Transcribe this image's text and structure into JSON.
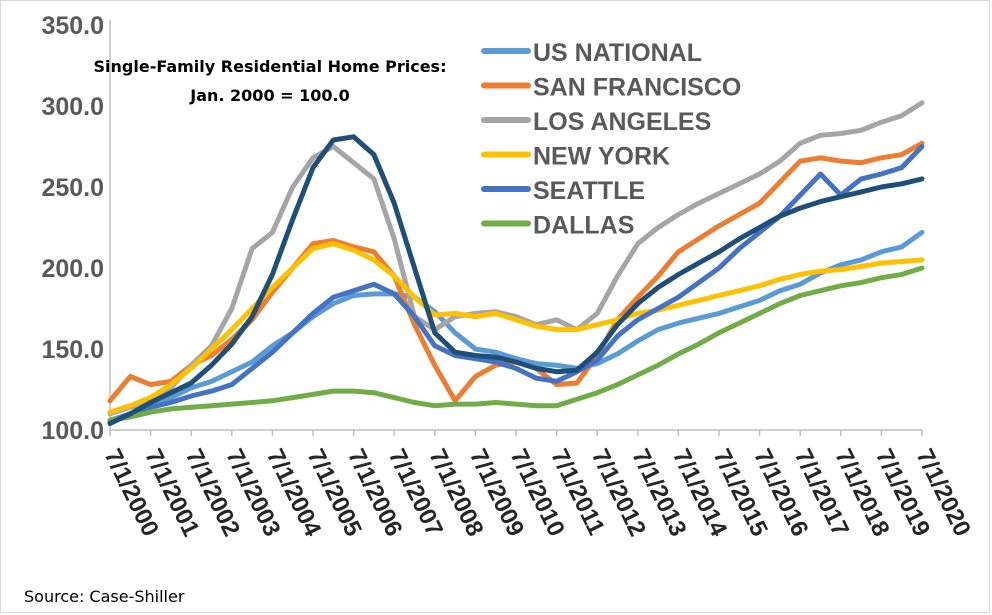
{
  "chart_data": {
    "type": "line",
    "title": "Single-Family Residential Home Prices:",
    "subtitle": "Jan. 2000 = 100.0",
    "source": "Source: Case-Shiller",
    "xlabel": "",
    "ylabel": "",
    "ylim": [
      100,
      350
    ],
    "xlim": [
      2000.5,
      2020.5
    ],
    "yticks": [
      "100.0",
      "150.0",
      "200.0",
      "250.0",
      "300.0",
      "350.0"
    ],
    "xticks": [
      "7/1/2000",
      "7/1/2001",
      "7/1/2002",
      "7/1/2003",
      "7/1/2004",
      "7/1/2005",
      "7/1/2006",
      "7/1/2007",
      "7/1/2008",
      "7/1/2009",
      "7/1/2010",
      "7/1/2011",
      "7/1/2012",
      "7/1/2013",
      "7/1/2014",
      "7/1/2015",
      "7/1/2016",
      "7/1/2017",
      "7/1/2018",
      "7/1/2019",
      "7/1/2020"
    ],
    "grid": false,
    "legend_position": "top-right",
    "x": [
      2000.5,
      2001.0,
      2001.5,
      2002.0,
      2002.5,
      2003.0,
      2003.5,
      2004.0,
      2004.5,
      2005.0,
      2005.5,
      2006.0,
      2006.5,
      2007.0,
      2007.5,
      2008.0,
      2008.5,
      2009.0,
      2009.5,
      2010.0,
      2010.5,
      2011.0,
      2011.5,
      2012.0,
      2012.5,
      2013.0,
      2013.5,
      2014.0,
      2014.5,
      2015.0,
      2015.5,
      2016.0,
      2016.5,
      2017.0,
      2017.5,
      2018.0,
      2018.5,
      2019.0,
      2019.5,
      2020.0,
      2020.5
    ],
    "series": [
      {
        "name": "US NATIONAL",
        "color": "#5B9BD5",
        "values": [
          106,
          110,
          116,
          120,
          126,
          130,
          136,
          142,
          152,
          160,
          170,
          178,
          183,
          184,
          184,
          182,
          173,
          160,
          150,
          148,
          144,
          141,
          140,
          138,
          141,
          147,
          155,
          162,
          166,
          169,
          172,
          176,
          180,
          186,
          190,
          197,
          202,
          205,
          210,
          213,
          222
        ]
      },
      {
        "name": "SAN FRANCISCO",
        "color": "#ED7D31",
        "values": [
          118,
          133,
          128,
          130,
          140,
          146,
          156,
          168,
          185,
          200,
          215,
          217,
          213,
          210,
          195,
          165,
          140,
          118,
          133,
          140,
          142,
          138,
          128,
          129,
          146,
          168,
          182,
          195,
          210,
          218,
          226,
          233,
          240,
          253,
          266,
          268,
          266,
          265,
          268,
          270,
          277
        ]
      },
      {
        "name": "LOS ANGELES",
        "color": "#A5A5A5",
        "values": [
          110,
          114,
          118,
          126,
          140,
          152,
          175,
          212,
          222,
          250,
          268,
          275,
          265,
          255,
          218,
          170,
          162,
          170,
          172,
          173,
          170,
          165,
          168,
          162,
          172,
          195,
          215,
          225,
          233,
          240,
          246,
          252,
          258,
          266,
          277,
          282,
          283,
          285,
          290,
          294,
          302
        ]
      },
      {
        "name": "NEW YORK",
        "color": "#FFC000",
        "values": [
          111,
          115,
          120,
          128,
          138,
          150,
          162,
          175,
          188,
          200,
          212,
          215,
          211,
          205,
          195,
          182,
          171,
          172,
          170,
          172,
          168,
          164,
          162,
          162,
          165,
          168,
          172,
          174,
          177,
          180,
          183,
          186,
          189,
          193,
          196,
          198,
          199,
          201,
          203,
          204,
          205
        ]
      },
      {
        "name": "SEATTLE",
        "color": "#4472C4",
        "values": [
          105,
          110,
          114,
          117,
          121,
          124,
          128,
          138,
          148,
          160,
          172,
          182,
          186,
          190,
          184,
          170,
          152,
          146,
          144,
          142,
          138,
          132,
          130,
          136,
          143,
          158,
          168,
          175,
          182,
          191,
          200,
          212,
          222,
          232,
          245,
          258,
          245,
          255,
          258,
          262,
          275
        ]
      },
      {
        "name": "DALLAS",
        "color": "#70AD47",
        "values": [
          106,
          108,
          111,
          113,
          114,
          115,
          116,
          117,
          118,
          120,
          122,
          124,
          124,
          123,
          120,
          117,
          115,
          116,
          116,
          117,
          116,
          115,
          115,
          119,
          123,
          128,
          134,
          140,
          147,
          153,
          160,
          166,
          172,
          178,
          183,
          186,
          189,
          191,
          194,
          196,
          200
        ]
      },
      {
        "name": "",
        "color": "#1F4E79",
        "values": [
          104,
          110,
          117,
          123,
          129,
          140,
          153,
          170,
          196,
          230,
          262,
          279,
          281,
          270,
          240,
          200,
          160,
          148,
          146,
          145,
          142,
          138,
          136,
          137,
          148,
          165,
          178,
          188,
          196,
          203,
          210,
          218,
          225,
          232,
          237,
          241,
          244,
          247,
          250,
          252,
          255
        ]
      }
    ]
  }
}
